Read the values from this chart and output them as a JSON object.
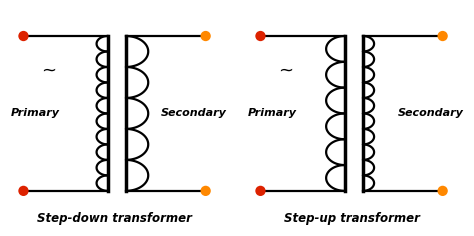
{
  "background_color": "#ffffff",
  "title_stepdown": "Step-down transformer",
  "title_stepup": "Step-up transformer",
  "title_fontsize": 8.5,
  "primary_label": "Primary",
  "secondary_label": "Secondary",
  "label_fontsize": 8,
  "line_color": "#000000",
  "line_width": 1.6,
  "dot_red": "#dd2200",
  "dot_orange": "#ff8800",
  "dot_size": 55,
  "tilde_fontsize": 13,
  "core_lw": 2.5
}
